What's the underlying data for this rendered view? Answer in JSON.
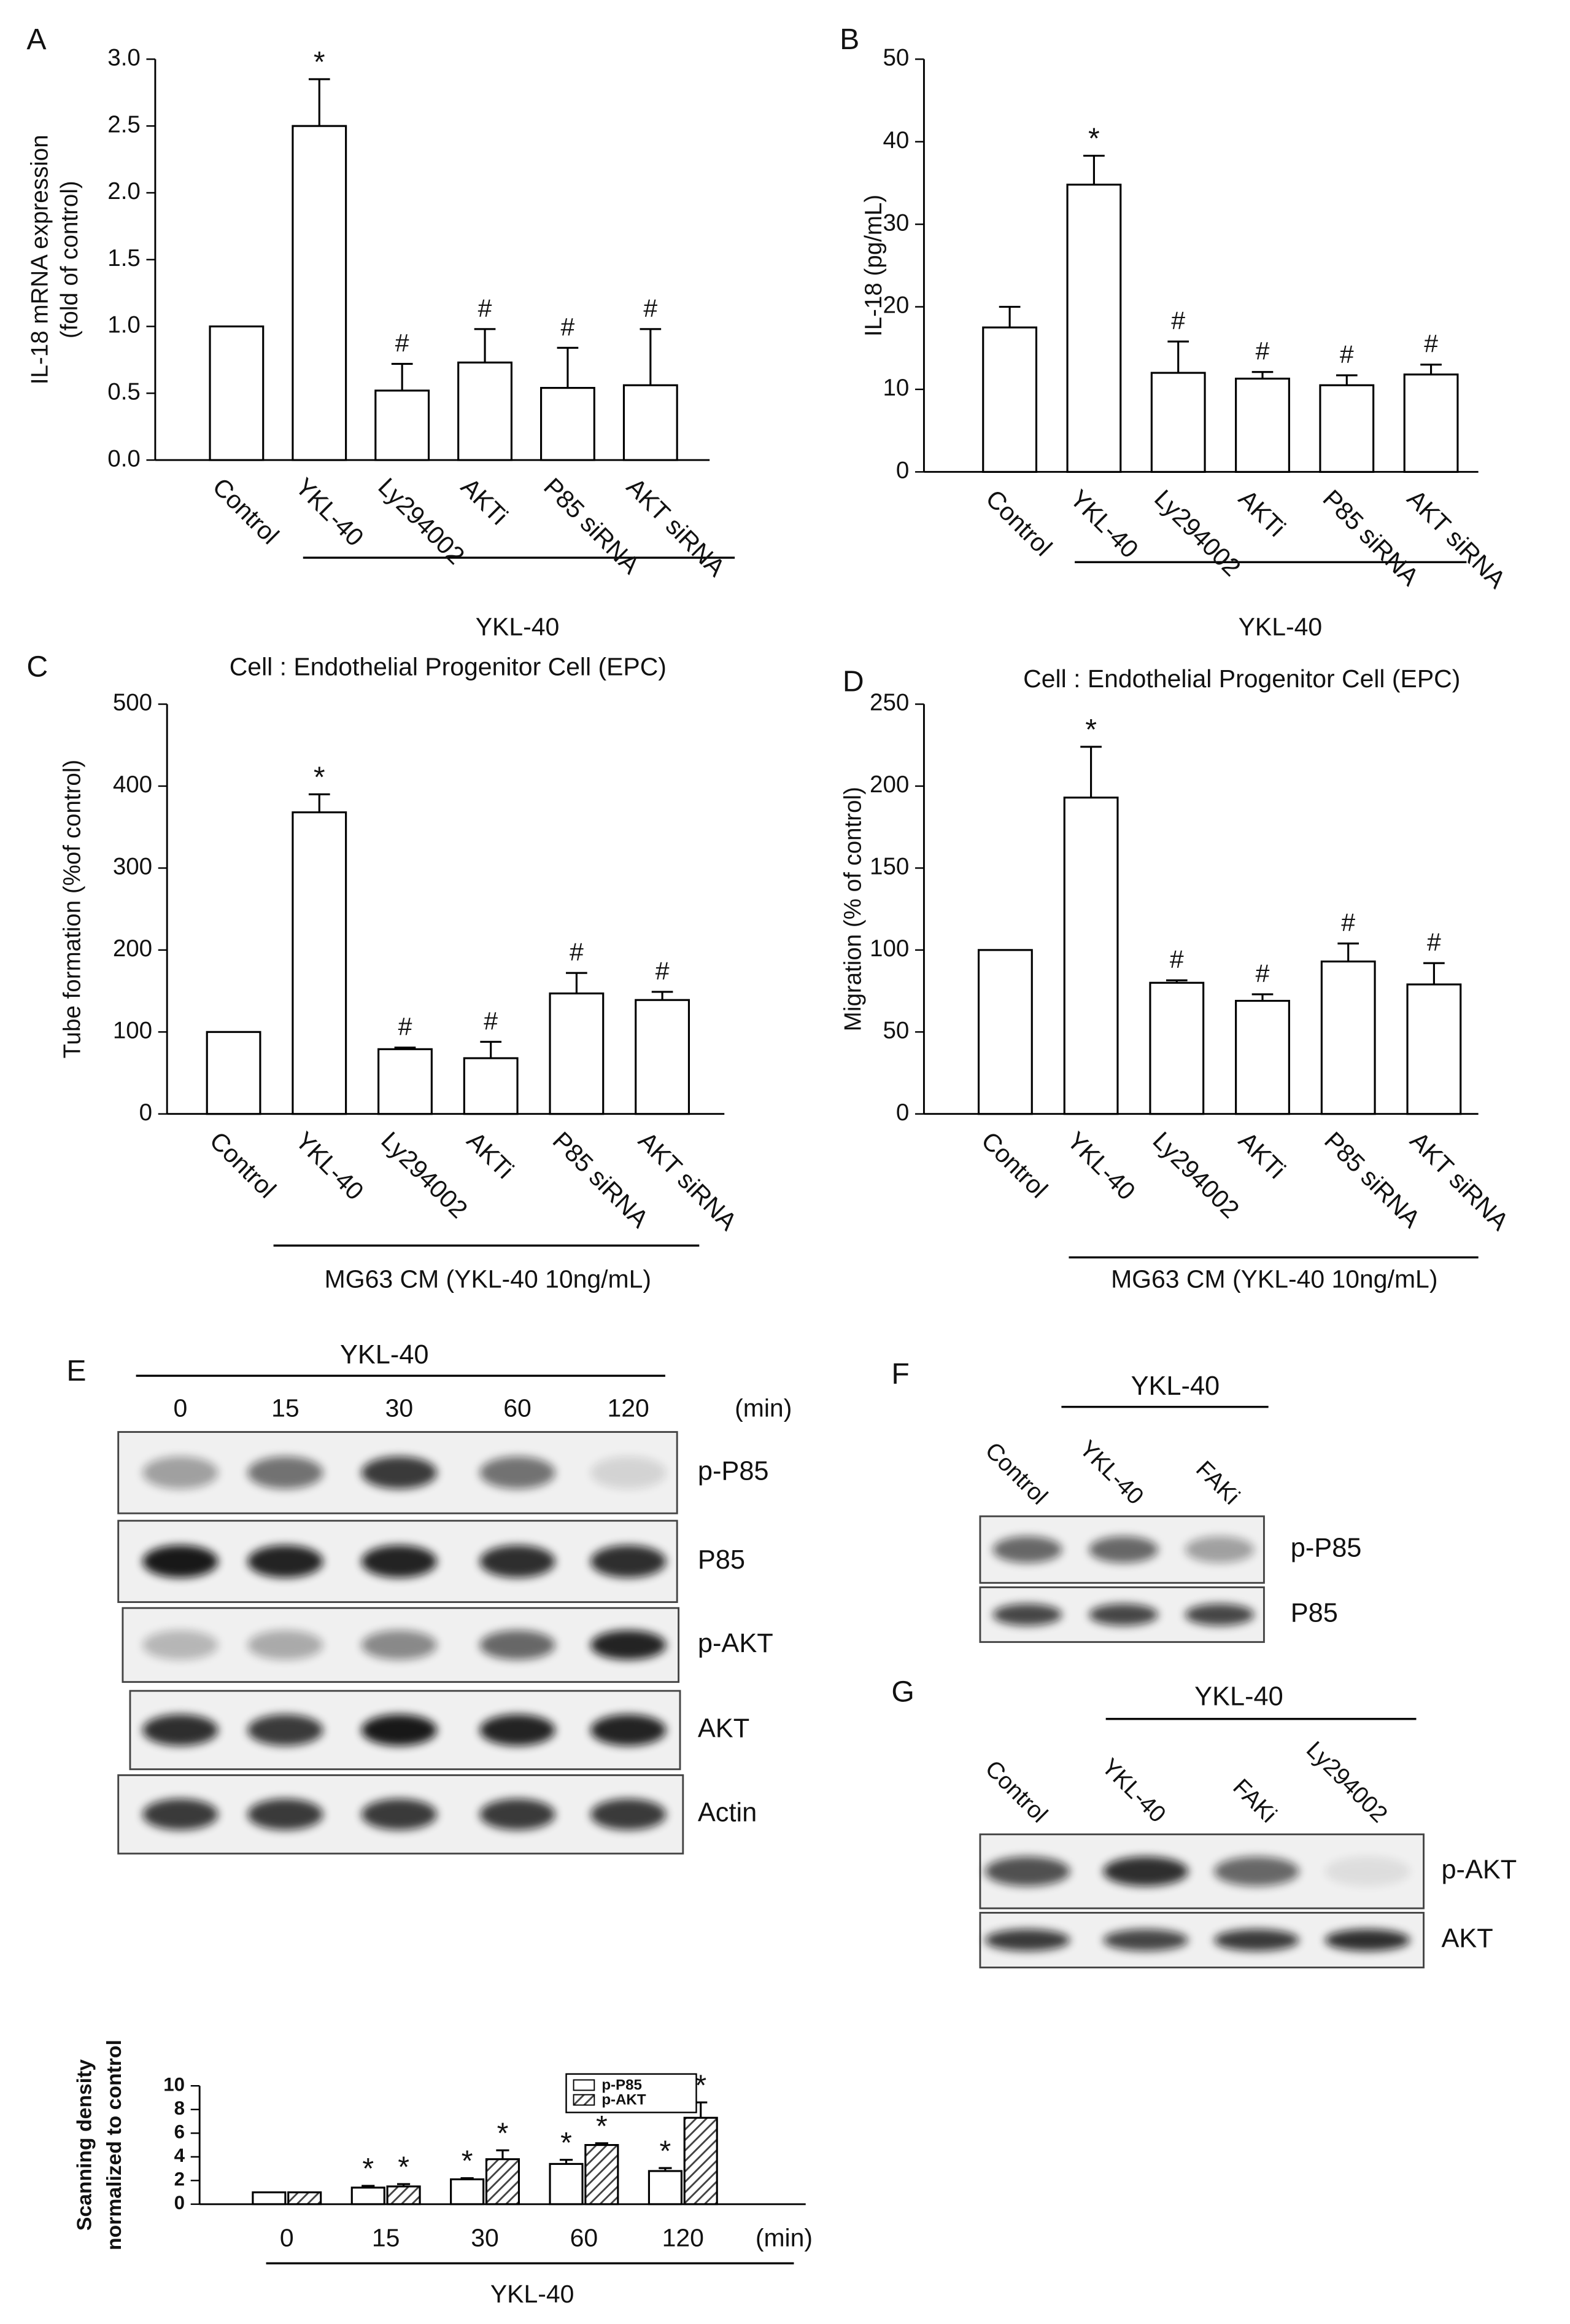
{
  "chart_data": [
    {
      "type": "bar",
      "panel": "A",
      "ylabel": [
        "IL-18 mRNA expression",
        "(fold of control)"
      ],
      "categories": [
        "Control",
        "YKL-40",
        "Ly294002",
        "AKTi",
        "P85 siRNA",
        "AKT siRNA"
      ],
      "values": [
        1.0,
        2.5,
        0.52,
        0.73,
        0.54,
        0.56
      ],
      "errors": [
        null,
        0.35,
        0.2,
        0.25,
        0.3,
        0.42
      ],
      "markers": [
        null,
        "*",
        "#",
        "#",
        "#",
        "#"
      ],
      "group_label": "YKL-40",
      "color": "#ffffff",
      "ylim": [
        0,
        3
      ],
      "yticks": [
        {
          "value": 0,
          "label": "0.0"
        },
        0.5,
        {
          "value": 1,
          "label": "1.0"
        },
        1.5,
        {
          "value": 2,
          "label": "2.0"
        },
        2.5,
        {
          "value": 3,
          "label": "3.0"
        }
      ]
    },
    {
      "type": "bar",
      "panel": "B",
      "ylabel": [
        "IL-18 (pg/mL)"
      ],
      "categories": [
        "Control",
        "YKL-40",
        "Ly294002",
        "AKTi",
        "P85 siRNA",
        "AKT siRNA"
      ],
      "values": [
        17.5,
        34.8,
        12,
        11.3,
        10.5,
        11.8
      ],
      "errors": [
        2.5,
        3.5,
        3.8,
        0.8,
        1.2,
        1.2
      ],
      "markers": [
        null,
        "*",
        "#",
        "#",
        "#",
        "#"
      ],
      "group_label": "YKL-40",
      "color": "#ffffff",
      "ylim": [
        0,
        50
      ],
      "yticks": [
        0,
        10,
        20,
        30,
        40,
        50
      ]
    },
    {
      "type": "bar",
      "panel": "C",
      "title": "Cell : Endothelial Progenitor Cell (EPC)",
      "ylabel": [
        "Tube formation (%of control)"
      ],
      "categories": [
        "Control",
        "YKL-40",
        "Ly294002",
        "AKTi",
        "P85 siRNA",
        "AKT siRNA"
      ],
      "values": [
        100,
        368,
        79,
        68,
        147,
        139
      ],
      "errors": [
        null,
        22,
        2,
        20,
        25,
        10
      ],
      "markers": [
        null,
        "*",
        "#",
        "#",
        "#",
        "#"
      ],
      "group_label": "MG63 CM (YKL-40 10ng/mL)",
      "color": "#ffffff",
      "ylim": [
        0,
        500
      ],
      "yticks": [
        0,
        100,
        200,
        300,
        400,
        500
      ]
    },
    {
      "type": "bar",
      "panel": "D",
      "title": "Cell : Endothelial Progenitor Cell (EPC)",
      "ylabel": [
        "Migration (% of control)"
      ],
      "categories": [
        "Control",
        "YKL-40",
        "Ly294002",
        "AKTi",
        "P85 siRNA",
        "AKT siRNA"
      ],
      "values": [
        100,
        193,
        80,
        69,
        93,
        79
      ],
      "errors": [
        null,
        31,
        1.5,
        4,
        11,
        13
      ],
      "markers": [
        null,
        "*",
        "#",
        "#",
        "#",
        "#"
      ],
      "group_label": "MG63 CM (YKL-40 10ng/mL)",
      "color": "#ffffff",
      "ylim": [
        0,
        250
      ],
      "yticks": [
        0,
        50,
        100,
        150,
        200,
        250
      ]
    },
    {
      "type": "grouped_bar",
      "ylabel": [
        "Scanning density",
        "normalized to control"
      ],
      "categories": [
        "0",
        "15",
        "30",
        "60",
        "120"
      ],
      "x_unit": "(min)",
      "group_label": "YKL-40",
      "series": [
        {
          "name": "p-P85",
          "color": "#ffffff",
          "values": [
            1,
            1.4,
            2.1,
            3.4,
            2.8
          ],
          "errors": [
            null,
            0.15,
            0.1,
            0.35,
            0.25
          ],
          "markers": [
            null,
            "*",
            "*",
            "*",
            "*"
          ]
        },
        {
          "name": "p-AKT",
          "color": "#444444",
          "hatch": true,
          "values": [
            1,
            1.5,
            3.8,
            5.0,
            7.3
          ],
          "errors": [
            null,
            0.2,
            0.75,
            0.15,
            1.3
          ],
          "markers": [
            null,
            "*",
            "*",
            "*",
            "*"
          ]
        }
      ],
      "ylim": [
        0,
        10
      ],
      "yticks": [
        0,
        2,
        4,
        6,
        8,
        10
      ],
      "legend": "top-right"
    }
  ],
  "blots": [
    {
      "panel": "E",
      "treatment": "YKL-40",
      "lanes": [
        "0",
        "15",
        "30",
        "60",
        "120"
      ],
      "unit": "(min)",
      "rows": [
        "p-P85",
        "P85",
        "p-AKT",
        "AKT",
        "Actin"
      ]
    },
    {
      "panel": "F",
      "treatment": "YKL-40",
      "lanes": [
        "Control",
        "YKL-40",
        "FAKi"
      ],
      "rows": [
        "p-P85",
        "P85"
      ]
    },
    {
      "panel": "G",
      "treatment": "YKL-40",
      "lanes": [
        "Control",
        "YKL-40",
        "FAKi",
        "Ly294002"
      ],
      "rows": [
        "p-AKT",
        "AKT"
      ]
    }
  ]
}
